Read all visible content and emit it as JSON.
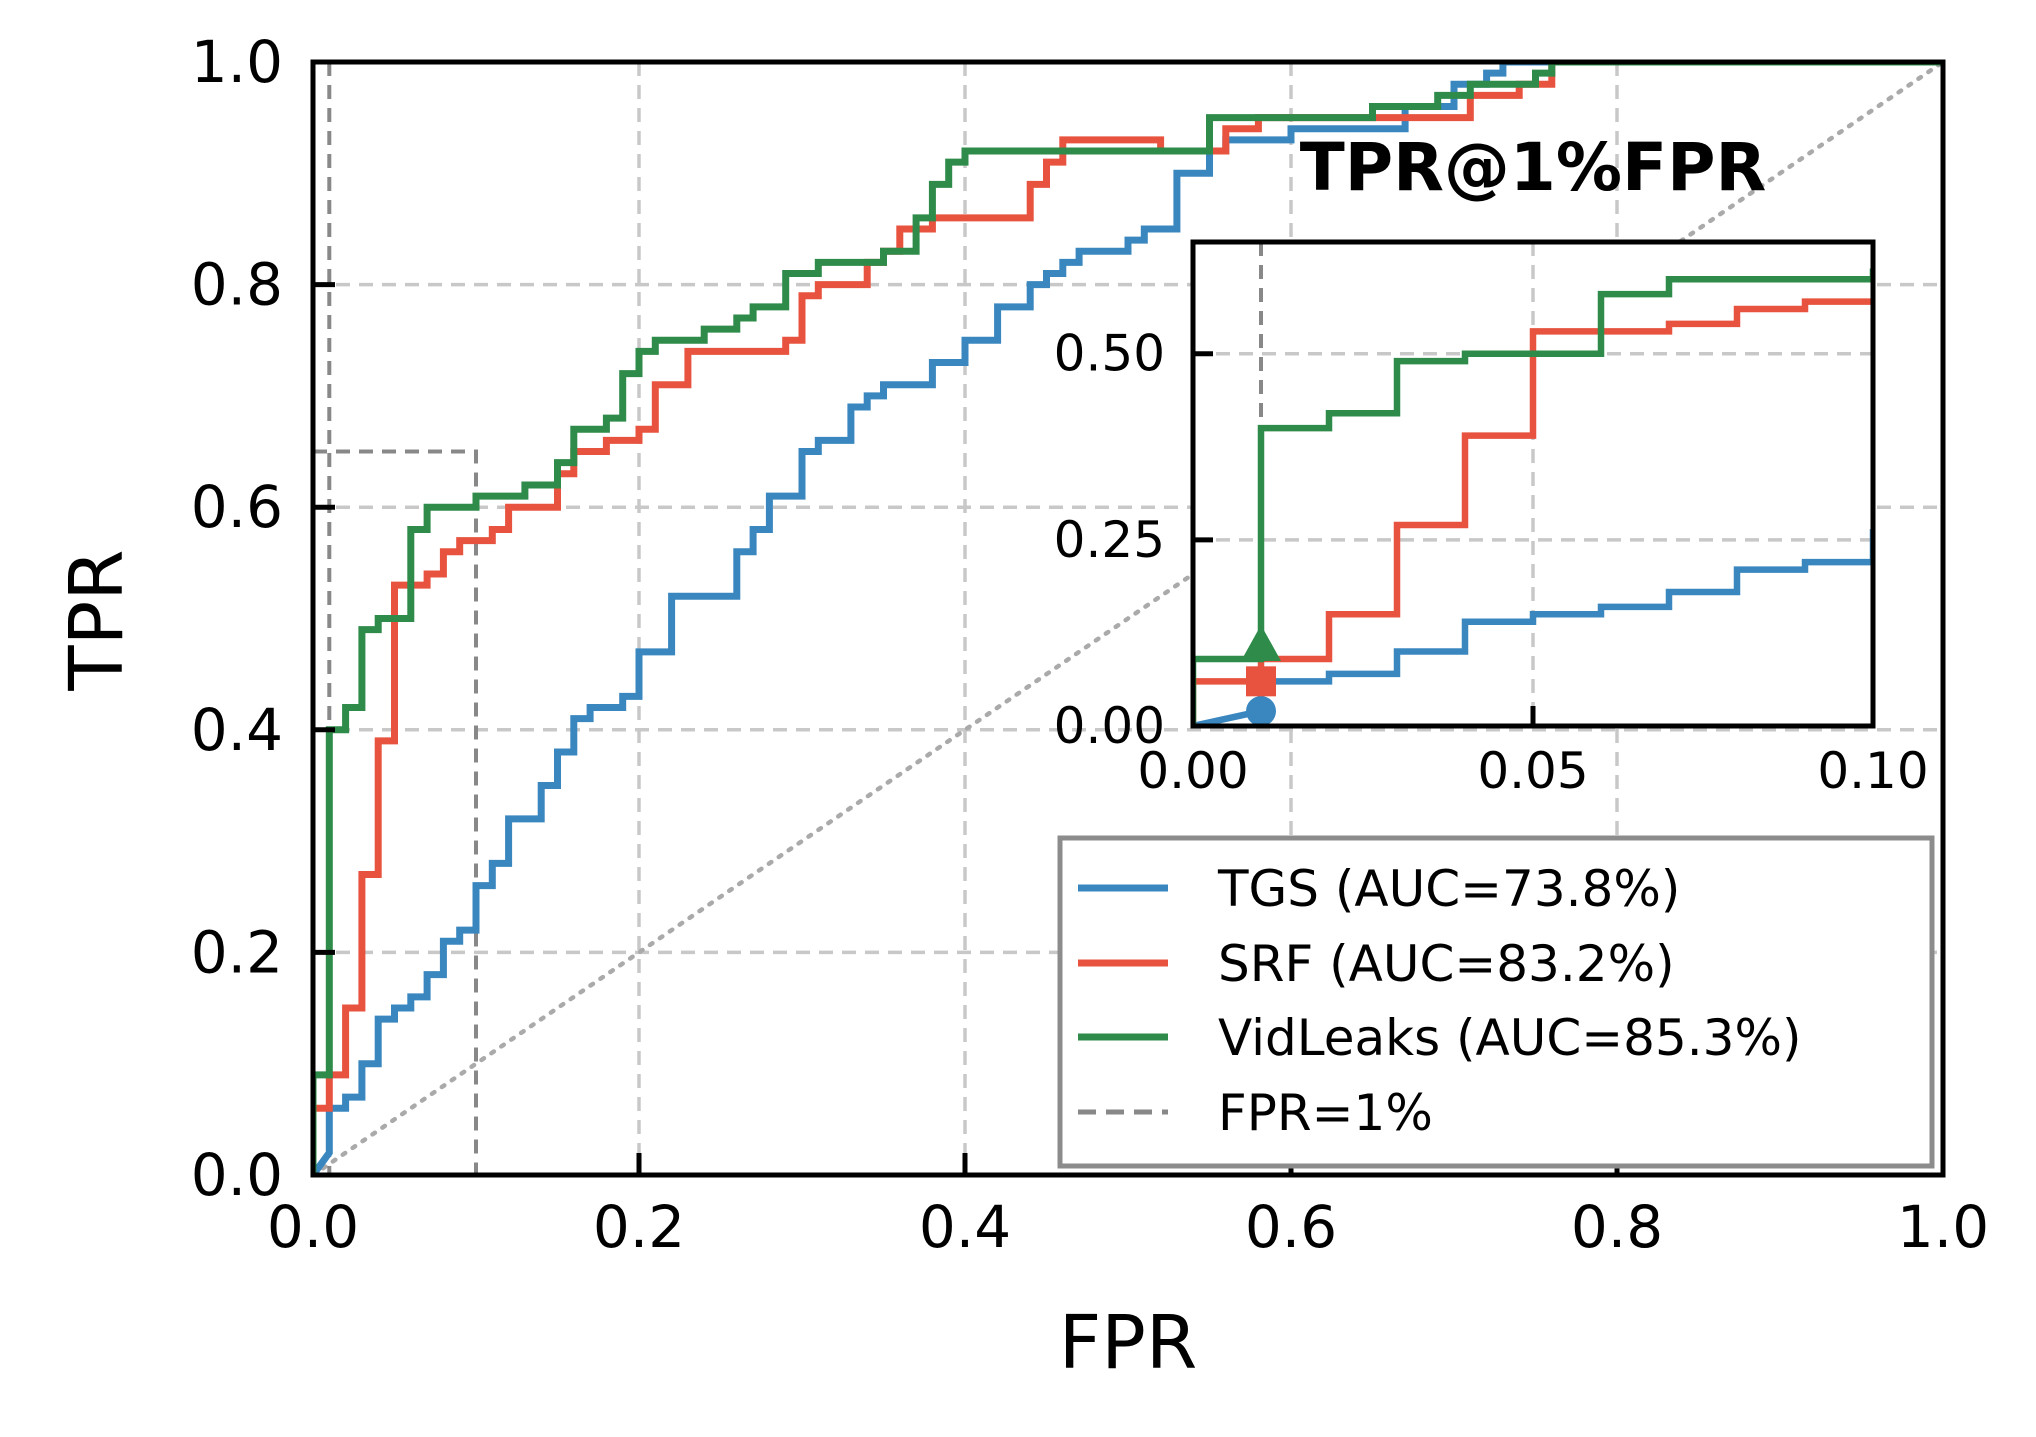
{
  "chart_data": {
    "type": "line",
    "xlabel": "FPR",
    "ylabel": "TPR",
    "xlim": [
      0,
      1
    ],
    "ylim": [
      0,
      1
    ],
    "x_ticks": [
      0.0,
      0.2,
      0.4,
      0.6,
      0.8,
      1.0
    ],
    "y_ticks": [
      0.0,
      0.2,
      0.4,
      0.6,
      0.8,
      1.0
    ],
    "x_tick_labels": [
      "0.0",
      "0.2",
      "0.4",
      "0.6",
      "0.8",
      "1.0"
    ],
    "y_tick_labels": [
      "0.0",
      "0.2",
      "0.4",
      "0.6",
      "0.8",
      "1.0"
    ],
    "grid": true,
    "legend_position": "lower-right",
    "colors": {
      "TGS": "#3a87c0",
      "SRF": "#e8533f",
      "VidLeaks": "#2e8b4a",
      "reference": "#888888",
      "random": "#aaaaaa",
      "grid": "#c8c8c8"
    },
    "series": [
      {
        "name": "TGS",
        "label": "TGS (AUC=73.8%)",
        "auc": 73.8,
        "points": [
          [
            0,
            0
          ],
          [
            0.01,
            0.02
          ],
          [
            0.01,
            0.06
          ],
          [
            0.02,
            0.06
          ],
          [
            0.02,
            0.07
          ],
          [
            0.03,
            0.07
          ],
          [
            0.03,
            0.1
          ],
          [
            0.04,
            0.1
          ],
          [
            0.04,
            0.14
          ],
          [
            0.05,
            0.14
          ],
          [
            0.05,
            0.15
          ],
          [
            0.06,
            0.15
          ],
          [
            0.06,
            0.16
          ],
          [
            0.07,
            0.16
          ],
          [
            0.07,
            0.18
          ],
          [
            0.08,
            0.18
          ],
          [
            0.08,
            0.21
          ],
          [
            0.09,
            0.21
          ],
          [
            0.09,
            0.22
          ],
          [
            0.1,
            0.22
          ],
          [
            0.1,
            0.26
          ],
          [
            0.11,
            0.26
          ],
          [
            0.11,
            0.28
          ],
          [
            0.12,
            0.28
          ],
          [
            0.12,
            0.32
          ],
          [
            0.14,
            0.32
          ],
          [
            0.14,
            0.35
          ],
          [
            0.15,
            0.35
          ],
          [
            0.15,
            0.38
          ],
          [
            0.16,
            0.38
          ],
          [
            0.16,
            0.41
          ],
          [
            0.17,
            0.41
          ],
          [
            0.17,
            0.42
          ],
          [
            0.19,
            0.42
          ],
          [
            0.19,
            0.43
          ],
          [
            0.2,
            0.43
          ],
          [
            0.2,
            0.47
          ],
          [
            0.22,
            0.47
          ],
          [
            0.22,
            0.52
          ],
          [
            0.26,
            0.52
          ],
          [
            0.26,
            0.56
          ],
          [
            0.27,
            0.56
          ],
          [
            0.27,
            0.58
          ],
          [
            0.28,
            0.58
          ],
          [
            0.28,
            0.61
          ],
          [
            0.3,
            0.61
          ],
          [
            0.3,
            0.65
          ],
          [
            0.31,
            0.65
          ],
          [
            0.31,
            0.66
          ],
          [
            0.33,
            0.66
          ],
          [
            0.33,
            0.69
          ],
          [
            0.34,
            0.69
          ],
          [
            0.34,
            0.7
          ],
          [
            0.35,
            0.7
          ],
          [
            0.35,
            0.71
          ],
          [
            0.38,
            0.71
          ],
          [
            0.38,
            0.73
          ],
          [
            0.4,
            0.73
          ],
          [
            0.4,
            0.75
          ],
          [
            0.42,
            0.75
          ],
          [
            0.42,
            0.78
          ],
          [
            0.44,
            0.78
          ],
          [
            0.44,
            0.8
          ],
          [
            0.45,
            0.8
          ],
          [
            0.45,
            0.81
          ],
          [
            0.46,
            0.81
          ],
          [
            0.46,
            0.82
          ],
          [
            0.47,
            0.82
          ],
          [
            0.47,
            0.83
          ],
          [
            0.5,
            0.83
          ],
          [
            0.5,
            0.84
          ],
          [
            0.51,
            0.84
          ],
          [
            0.51,
            0.85
          ],
          [
            0.53,
            0.85
          ],
          [
            0.53,
            0.9
          ],
          [
            0.55,
            0.9
          ],
          [
            0.55,
            0.92
          ],
          [
            0.56,
            0.92
          ],
          [
            0.56,
            0.93
          ],
          [
            0.6,
            0.93
          ],
          [
            0.6,
            0.94
          ],
          [
            0.67,
            0.94
          ],
          [
            0.67,
            0.96
          ],
          [
            0.7,
            0.96
          ],
          [
            0.7,
            0.98
          ],
          [
            0.72,
            0.98
          ],
          [
            0.72,
            0.99
          ],
          [
            0.73,
            0.99
          ],
          [
            0.73,
            1.0
          ],
          [
            1.0,
            1.0
          ]
        ]
      },
      {
        "name": "SRF",
        "label": "SRF (AUC=83.2%)",
        "auc": 83.2,
        "points": [
          [
            0,
            0
          ],
          [
            0,
            0.06
          ],
          [
            0.01,
            0.06
          ],
          [
            0.01,
            0.09
          ],
          [
            0.02,
            0.09
          ],
          [
            0.02,
            0.15
          ],
          [
            0.03,
            0.15
          ],
          [
            0.03,
            0.27
          ],
          [
            0.04,
            0.27
          ],
          [
            0.04,
            0.39
          ],
          [
            0.05,
            0.39
          ],
          [
            0.05,
            0.53
          ],
          [
            0.07,
            0.53
          ],
          [
            0.07,
            0.54
          ],
          [
            0.08,
            0.54
          ],
          [
            0.08,
            0.56
          ],
          [
            0.09,
            0.56
          ],
          [
            0.09,
            0.57
          ],
          [
            0.11,
            0.57
          ],
          [
            0.11,
            0.58
          ],
          [
            0.12,
            0.58
          ],
          [
            0.12,
            0.6
          ],
          [
            0.15,
            0.6
          ],
          [
            0.15,
            0.63
          ],
          [
            0.16,
            0.63
          ],
          [
            0.16,
            0.65
          ],
          [
            0.18,
            0.65
          ],
          [
            0.18,
            0.66
          ],
          [
            0.2,
            0.66
          ],
          [
            0.2,
            0.67
          ],
          [
            0.21,
            0.67
          ],
          [
            0.21,
            0.71
          ],
          [
            0.23,
            0.71
          ],
          [
            0.23,
            0.74
          ],
          [
            0.29,
            0.74
          ],
          [
            0.29,
            0.75
          ],
          [
            0.3,
            0.75
          ],
          [
            0.3,
            0.79
          ],
          [
            0.31,
            0.79
          ],
          [
            0.31,
            0.8
          ],
          [
            0.34,
            0.8
          ],
          [
            0.34,
            0.82
          ],
          [
            0.35,
            0.82
          ],
          [
            0.35,
            0.83
          ],
          [
            0.36,
            0.83
          ],
          [
            0.36,
            0.85
          ],
          [
            0.38,
            0.85
          ],
          [
            0.38,
            0.86
          ],
          [
            0.44,
            0.86
          ],
          [
            0.44,
            0.89
          ],
          [
            0.45,
            0.89
          ],
          [
            0.45,
            0.91
          ],
          [
            0.46,
            0.91
          ],
          [
            0.46,
            0.93
          ],
          [
            0.52,
            0.93
          ],
          [
            0.52,
            0.92
          ],
          [
            0.56,
            0.92
          ],
          [
            0.56,
            0.94
          ],
          [
            0.58,
            0.94
          ],
          [
            0.58,
            0.95
          ],
          [
            0.71,
            0.95
          ],
          [
            0.71,
            0.97
          ],
          [
            0.74,
            0.97
          ],
          [
            0.74,
            0.98
          ],
          [
            0.76,
            0.98
          ],
          [
            0.76,
            1.0
          ],
          [
            1.0,
            1.0
          ]
        ]
      },
      {
        "name": "VidLeaks",
        "label": "VidLeaks (AUC=85.3%)",
        "auc": 85.3,
        "points": [
          [
            0,
            0
          ],
          [
            0,
            0.09
          ],
          [
            0.01,
            0.09
          ],
          [
            0.01,
            0.4
          ],
          [
            0.02,
            0.4
          ],
          [
            0.02,
            0.42
          ],
          [
            0.03,
            0.42
          ],
          [
            0.03,
            0.49
          ],
          [
            0.04,
            0.49
          ],
          [
            0.04,
            0.5
          ],
          [
            0.06,
            0.5
          ],
          [
            0.06,
            0.58
          ],
          [
            0.07,
            0.58
          ],
          [
            0.07,
            0.6
          ],
          [
            0.1,
            0.6
          ],
          [
            0.1,
            0.61
          ],
          [
            0.13,
            0.61
          ],
          [
            0.13,
            0.62
          ],
          [
            0.15,
            0.62
          ],
          [
            0.15,
            0.64
          ],
          [
            0.16,
            0.64
          ],
          [
            0.16,
            0.67
          ],
          [
            0.18,
            0.67
          ],
          [
            0.18,
            0.68
          ],
          [
            0.19,
            0.68
          ],
          [
            0.19,
            0.72
          ],
          [
            0.2,
            0.72
          ],
          [
            0.2,
            0.74
          ],
          [
            0.21,
            0.74
          ],
          [
            0.21,
            0.75
          ],
          [
            0.24,
            0.75
          ],
          [
            0.24,
            0.76
          ],
          [
            0.26,
            0.76
          ],
          [
            0.26,
            0.77
          ],
          [
            0.27,
            0.77
          ],
          [
            0.27,
            0.78
          ],
          [
            0.29,
            0.78
          ],
          [
            0.29,
            0.81
          ],
          [
            0.31,
            0.81
          ],
          [
            0.31,
            0.82
          ],
          [
            0.35,
            0.82
          ],
          [
            0.35,
            0.83
          ],
          [
            0.37,
            0.83
          ],
          [
            0.37,
            0.86
          ],
          [
            0.38,
            0.86
          ],
          [
            0.38,
            0.89
          ],
          [
            0.39,
            0.89
          ],
          [
            0.39,
            0.91
          ],
          [
            0.4,
            0.91
          ],
          [
            0.4,
            0.92
          ],
          [
            0.55,
            0.92
          ],
          [
            0.55,
            0.95
          ],
          [
            0.65,
            0.95
          ],
          [
            0.65,
            0.96
          ],
          [
            0.69,
            0.96
          ],
          [
            0.69,
            0.97
          ],
          [
            0.71,
            0.97
          ],
          [
            0.71,
            0.98
          ],
          [
            0.75,
            0.98
          ],
          [
            0.75,
            0.99
          ],
          [
            0.76,
            0.99
          ],
          [
            0.76,
            1.0
          ],
          [
            1.0,
            1.0
          ]
        ]
      }
    ],
    "reference_line": {
      "label": "FPR=1%",
      "x": 0.01
    },
    "diagonal": {
      "x": [
        0,
        1
      ],
      "y": [
        0,
        1
      ]
    },
    "zoom_box": {
      "x": [
        0,
        0.1
      ],
      "y": [
        0,
        0.65
      ]
    },
    "inset": {
      "title": "TPR@1%FPR",
      "xlim": [
        0,
        0.1
      ],
      "ylim": [
        0,
        0.65
      ],
      "x_ticks": [
        0.0,
        0.05,
        0.1
      ],
      "y_ticks": [
        0.0,
        0.25,
        0.5
      ],
      "x_tick_labels": [
        "0.00",
        "0.05",
        "0.10"
      ],
      "y_tick_labels": [
        "0.00",
        "0.25",
        "0.50"
      ],
      "markers": [
        {
          "series": "TGS",
          "x": 0.01,
          "y": 0.02,
          "shape": "circle"
        },
        {
          "series": "SRF",
          "x": 0.01,
          "y": 0.06,
          "shape": "square"
        },
        {
          "series": "VidLeaks",
          "x": 0.01,
          "y": 0.09,
          "shape": "triangle"
        }
      ]
    }
  }
}
